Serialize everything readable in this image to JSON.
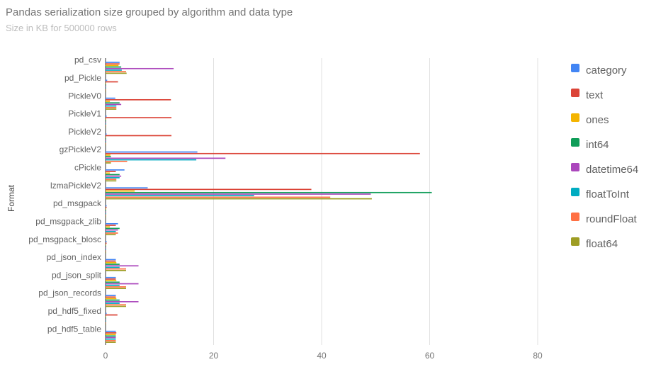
{
  "header": {
    "title": "Pandas serialization size grouped by algorithm and data type",
    "subtitle": "Size in KB for 500000 rows"
  },
  "chart_data": {
    "type": "bar",
    "orientation": "horizontal",
    "ylabel": "Format",
    "xlabel": "",
    "xlim": [
      0,
      80
    ],
    "xticks": [
      "0",
      "20",
      "40",
      "60",
      "80"
    ],
    "grid": true,
    "legend_position": "right",
    "categories": [
      "pd_csv",
      "pd_Pickle",
      "PickleV0",
      "PickleV1",
      "PickleV2",
      "gzPickleV2",
      "cPickle",
      "lzmaPickleV2",
      "pd_msgpack",
      "pd_msgpack_zlib",
      "pd_msgpack_blosc",
      "pd_json_index",
      "pd_json_split",
      "pd_json_records",
      "pd_hdf5_fixed",
      "pd_hdf5_table"
    ],
    "series": [
      {
        "name": "category",
        "color": "#4285f4",
        "values": [
          2.6,
          0.3,
          1.8,
          0.2,
          0.2,
          17.0,
          3.5,
          7.8,
          0.2,
          2.3,
          0.2,
          1.9,
          1.9,
          1.9,
          0.2,
          1.9
        ]
      },
      {
        "name": "text",
        "color": "#db4437",
        "values": [
          2.6,
          2.3,
          12.1,
          12.2,
          12.2,
          58.2,
          1.9,
          38.1,
          0.2,
          1.9,
          0.2,
          1.9,
          1.9,
          1.9,
          2.2,
          2.0
        ]
      },
      {
        "name": "ones",
        "color": "#f4b400",
        "values": [
          2.4,
          0.1,
          0.8,
          0.1,
          0.1,
          0.9,
          0.8,
          5.4,
          0.1,
          0.8,
          0.1,
          2.0,
          2.0,
          2.0,
          0.1,
          1.9
        ]
      },
      {
        "name": "int64",
        "color": "#0f9d58",
        "values": [
          2.9,
          0.1,
          2.6,
          0.1,
          0.1,
          1.0,
          2.6,
          60.4,
          0.1,
          2.6,
          0.1,
          2.6,
          2.6,
          2.6,
          0.1,
          1.9
        ]
      },
      {
        "name": "datetime64",
        "color": "#ab47bc",
        "values": [
          12.6,
          0.1,
          2.9,
          0.1,
          0.1,
          22.2,
          2.9,
          49.1,
          0.1,
          2.3,
          0.1,
          6.1,
          6.1,
          6.1,
          0.1,
          1.9
        ]
      },
      {
        "name": "floatToInt",
        "color": "#00acc1",
        "values": [
          3.0,
          0.1,
          2.0,
          0.1,
          0.1,
          16.8,
          2.6,
          27.5,
          0.1,
          1.9,
          0.1,
          2.6,
          2.6,
          2.6,
          0.1,
          1.9
        ]
      },
      {
        "name": "roundFloat",
        "color": "#ff7043",
        "values": [
          3.8,
          0.1,
          2.0,
          0.1,
          0.1,
          4.0,
          2.0,
          41.6,
          0.1,
          2.3,
          0.1,
          3.8,
          3.8,
          3.8,
          0.1,
          1.9
        ]
      },
      {
        "name": "float64",
        "color": "#9e9d24",
        "values": [
          3.9,
          0.1,
          2.0,
          0.1,
          0.1,
          1.0,
          2.0,
          49.3,
          0.1,
          1.9,
          0.1,
          3.8,
          3.8,
          3.8,
          0.1,
          1.9
        ]
      }
    ]
  }
}
